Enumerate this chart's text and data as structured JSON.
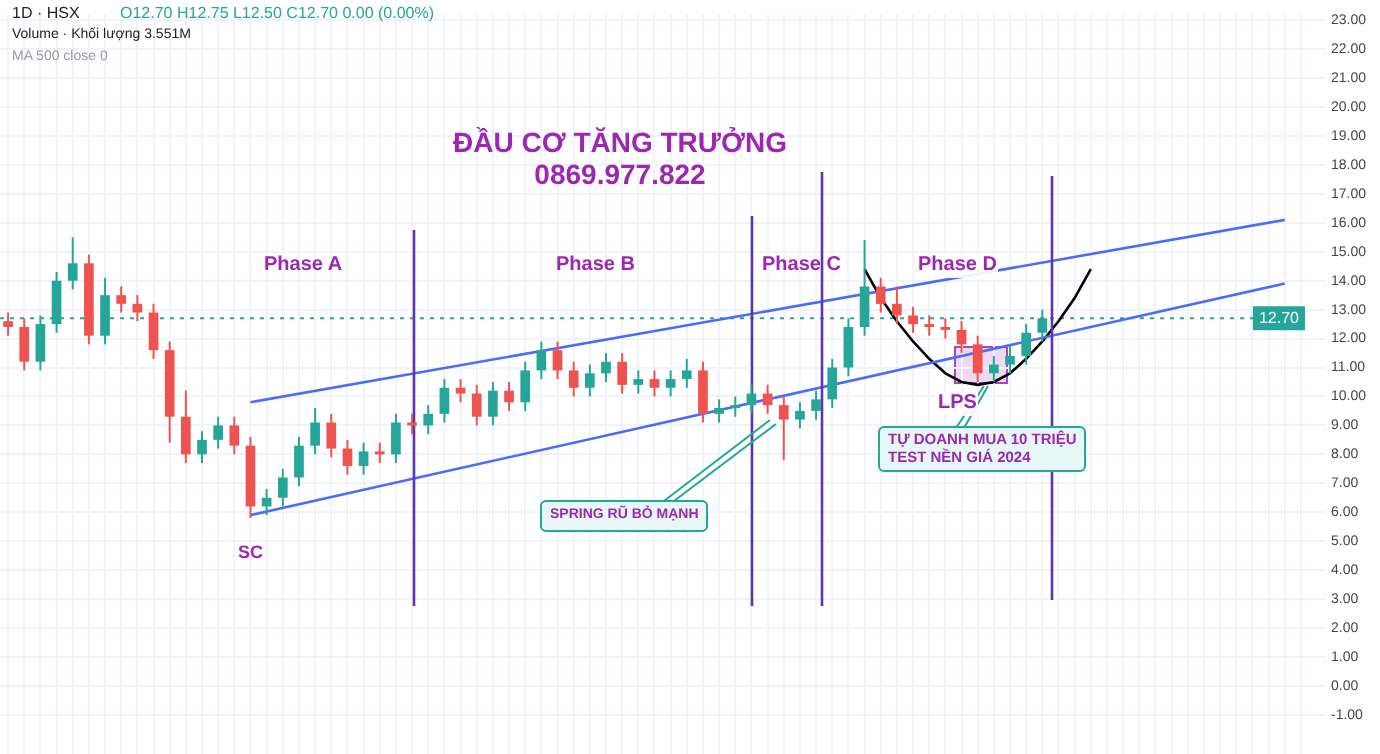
{
  "chart_data": {
    "type": "candlestick",
    "title": "ĐẦU CƠ TĂNG TRƯỞNG",
    "subtitle": "0869.977.822",
    "categories": [
      null,
      null,
      null,
      null,
      null,
      null,
      null,
      null,
      null,
      null,
      null,
      null,
      null,
      null,
      null,
      null,
      null,
      null,
      null,
      null,
      null,
      null,
      null,
      null,
      null,
      null,
      null,
      null,
      null,
      null,
      null,
      null,
      null,
      null,
      null,
      null,
      null,
      null,
      null,
      null,
      null,
      null,
      null,
      null,
      null,
      null,
      null,
      null,
      null,
      null,
      null,
      null,
      null,
      null,
      null,
      null,
      null,
      null,
      null,
      null,
      null,
      null,
      null,
      null,
      null,
      null,
      null,
      null,
      null,
      null,
      null,
      null,
      null,
      null,
      null,
      null,
      null,
      null,
      null,
      null,
      null
    ],
    "ohlc": [
      [
        12.6,
        12.9,
        12.1,
        12.4
      ],
      [
        12.4,
        12.7,
        10.9,
        11.2
      ],
      [
        11.2,
        12.8,
        10.9,
        12.5
      ],
      [
        12.5,
        14.3,
        12.2,
        14.0
      ],
      [
        14.0,
        15.5,
        13.7,
        14.6
      ],
      [
        14.6,
        14.9,
        11.8,
        12.1
      ],
      [
        12.1,
        14.1,
        11.8,
        13.5
      ],
      [
        13.5,
        13.8,
        12.9,
        13.2
      ],
      [
        13.2,
        13.5,
        12.6,
        12.9
      ],
      [
        12.9,
        13.2,
        11.3,
        11.6
      ],
      [
        11.6,
        11.9,
        8.4,
        9.3
      ],
      [
        9.3,
        10.2,
        7.7,
        8.0
      ],
      [
        8.0,
        8.8,
        7.7,
        8.5
      ],
      [
        8.5,
        9.3,
        8.2,
        9.0
      ],
      [
        9.0,
        9.3,
        8.0,
        8.3
      ],
      [
        8.3,
        8.6,
        5.8,
        6.2
      ],
      [
        6.2,
        6.8,
        5.9,
        6.5
      ],
      [
        6.5,
        7.5,
        6.2,
        7.2
      ],
      [
        7.2,
        8.6,
        6.9,
        8.3
      ],
      [
        8.3,
        9.6,
        8.0,
        9.1
      ],
      [
        9.1,
        9.4,
        7.9,
        8.2
      ],
      [
        8.2,
        8.5,
        7.3,
        7.6
      ],
      [
        7.6,
        8.4,
        7.3,
        8.1
      ],
      [
        8.1,
        8.4,
        7.7,
        8.0
      ],
      [
        8.0,
        9.4,
        7.7,
        9.1
      ],
      [
        9.1,
        9.4,
        8.7,
        9.0
      ],
      [
        9.0,
        9.7,
        8.7,
        9.4
      ],
      [
        9.4,
        10.6,
        9.1,
        10.3
      ],
      [
        10.3,
        10.6,
        9.8,
        10.1
      ],
      [
        10.1,
        10.4,
        9.0,
        9.3
      ],
      [
        9.3,
        10.5,
        9.0,
        10.2
      ],
      [
        10.2,
        10.5,
        9.5,
        9.8
      ],
      [
        9.8,
        11.2,
        9.5,
        10.9
      ],
      [
        10.9,
        11.9,
        10.6,
        11.6
      ],
      [
        11.6,
        11.9,
        10.6,
        10.9
      ],
      [
        10.9,
        11.2,
        10.0,
        10.3
      ],
      [
        10.3,
        11.1,
        10.0,
        10.8
      ],
      [
        10.8,
        11.5,
        10.5,
        11.2
      ],
      [
        11.2,
        11.5,
        10.1,
        10.4
      ],
      [
        10.4,
        10.9,
        10.1,
        10.6
      ],
      [
        10.6,
        10.9,
        10.0,
        10.3
      ],
      [
        10.3,
        10.9,
        10.0,
        10.6
      ],
      [
        10.6,
        11.3,
        10.3,
        10.9
      ],
      [
        10.9,
        11.2,
        9.1,
        9.4
      ],
      [
        9.4,
        9.9,
        9.1,
        9.6
      ],
      [
        9.6,
        10.0,
        9.3,
        9.7
      ],
      [
        9.7,
        10.4,
        9.4,
        10.1
      ],
      [
        10.1,
        10.4,
        9.4,
        9.7
      ],
      [
        9.7,
        10.0,
        7.8,
        9.2
      ],
      [
        9.2,
        9.8,
        8.9,
        9.5
      ],
      [
        9.5,
        10.2,
        9.2,
        9.9
      ],
      [
        9.9,
        11.3,
        9.6,
        11.0
      ],
      [
        11.0,
        12.7,
        10.7,
        12.4
      ],
      [
        12.4,
        15.4,
        12.1,
        13.8
      ],
      [
        13.8,
        14.1,
        12.9,
        13.2
      ],
      [
        13.2,
        13.8,
        12.5,
        12.8
      ],
      [
        12.8,
        13.1,
        12.2,
        12.5
      ],
      [
        12.5,
        12.8,
        12.1,
        12.4
      ],
      [
        12.4,
        12.7,
        12.0,
        12.3
      ],
      [
        12.3,
        12.6,
        11.5,
        11.8
      ],
      [
        11.8,
        12.1,
        10.5,
        10.8
      ],
      [
        10.8,
        11.4,
        10.5,
        11.1
      ],
      [
        11.1,
        11.8,
        10.8,
        11.4
      ],
      [
        11.4,
        12.5,
        11.1,
        12.2
      ],
      [
        12.2,
        13.0,
        11.9,
        12.7
      ],
      null,
      null,
      null,
      null,
      null,
      null,
      null,
      null,
      null,
      null,
      null,
      null,
      null,
      null,
      null,
      null
    ],
    "colors": [
      "#ef5350",
      "#ef5350",
      "#26a69a",
      "#26a69a",
      "#26a69a",
      "#ef5350",
      "#26a69a",
      "#ef5350",
      "#ef5350",
      "#ef5350",
      "#ef5350",
      "#ef5350",
      "#26a69a",
      "#26a69a",
      "#ef5350",
      "#ef5350",
      "#26a69a",
      "#26a69a",
      "#26a69a",
      "#26a69a",
      "#ef5350",
      "#ef5350",
      "#26a69a",
      "#ef5350",
      "#26a69a",
      "#ef5350",
      "#26a69a",
      "#26a69a",
      "#ef5350",
      "#ef5350",
      "#26a69a",
      "#ef5350",
      "#26a69a",
      "#26a69a",
      "#ef5350",
      "#ef5350",
      "#26a69a",
      "#26a69a",
      "#ef5350",
      "#26a69a",
      "#ef5350",
      "#26a69a",
      "#26a69a",
      "#ef5350",
      "#26a69a",
      "#26a69a",
      "#26a69a",
      "#ef5350",
      "#ef5350",
      "#26a69a",
      "#26a69a",
      "#26a69a",
      "#26a69a",
      "#26a69a",
      "#ef5350",
      "#ef5350",
      "#ef5350",
      "#ef5350",
      "#ef5350",
      "#ef5350",
      "#ef5350",
      "#26a69a",
      "#26a69a",
      "#26a69a",
      "#26a69a",
      null,
      null,
      null,
      null,
      null,
      null,
      null,
      null,
      null,
      null,
      null,
      null,
      null,
      null,
      null,
      null
    ],
    "series": [
      {
        "type": "line",
        "color": "#4a6cf7",
        "values": [
          null,
          null,
          null,
          null,
          null,
          null,
          null,
          null,
          null,
          null,
          null,
          null,
          null,
          null,
          null,
          9.8,
          null,
          null,
          null,
          null,
          null,
          null,
          null,
          null,
          null,
          null,
          null,
          null,
          null,
          null,
          null,
          null,
          null,
          null,
          null,
          null,
          null,
          null,
          null,
          null,
          null,
          null,
          null,
          null,
          null,
          null,
          null,
          null,
          null,
          null,
          null,
          null,
          null,
          null,
          null,
          null,
          null,
          null,
          null,
          null,
          null,
          null,
          null,
          null,
          null,
          null,
          null,
          null,
          null,
          null,
          null,
          null,
          null,
          null,
          null,
          null,
          null,
          null,
          null,
          16.1,
          null
        ]
      },
      {
        "type": "line",
        "color": "#4a6cf7",
        "values": [
          null,
          null,
          null,
          null,
          null,
          null,
          null,
          null,
          null,
          null,
          null,
          null,
          null,
          null,
          null,
          5.9,
          null,
          null,
          null,
          null,
          null,
          null,
          null,
          null,
          null,
          null,
          null,
          null,
          null,
          null,
          null,
          null,
          null,
          null,
          null,
          null,
          null,
          null,
          null,
          null,
          null,
          null,
          null,
          null,
          null,
          null,
          null,
          null,
          null,
          null,
          null,
          null,
          null,
          null,
          null,
          null,
          null,
          null,
          null,
          null,
          null,
          null,
          null,
          null,
          null,
          null,
          null,
          null,
          null,
          null,
          null,
          null,
          null,
          null,
          null,
          null,
          null,
          null,
          null,
          13.9,
          null
        ]
      },
      {
        "type": "line",
        "color": "#000000",
        "values": [
          null,
          null,
          null,
          null,
          null,
          null,
          null,
          null,
          null,
          null,
          null,
          null,
          null,
          null,
          null,
          null,
          null,
          null,
          null,
          null,
          null,
          null,
          null,
          null,
          null,
          null,
          null,
          null,
          null,
          null,
          null,
          null,
          null,
          null,
          null,
          null,
          null,
          null,
          null,
          null,
          null,
          null,
          null,
          null,
          null,
          null,
          null,
          null,
          null,
          null,
          null,
          null,
          null,
          14.4,
          13.4,
          12.6,
          11.9,
          11.3,
          10.8,
          10.5,
          10.4,
          10.5,
          10.8,
          11.3,
          11.9,
          12.6,
          13.4,
          14.4,
          null,
          null,
          null,
          null,
          null,
          null,
          null,
          null,
          null,
          null,
          null,
          null,
          null
        ]
      }
    ],
    "ylim": [
      -1.8,
      23.2
    ],
    "yticks": [
      {
        "value": -1,
        "label": "-1.00"
      },
      {
        "value": 0,
        "label": "0.00"
      },
      {
        "value": 1,
        "label": "1.00"
      },
      {
        "value": 2,
        "label": "2.00"
      },
      {
        "value": 3,
        "label": "3.00"
      },
      {
        "value": 4,
        "label": "4.00"
      },
      {
        "value": 5,
        "label": "5.00"
      },
      {
        "value": 6,
        "label": "6.00"
      },
      {
        "value": 7,
        "label": "7.00"
      },
      {
        "value": 8,
        "label": "8.00"
      },
      {
        "value": 9,
        "label": "9.00"
      },
      {
        "value": 10,
        "label": "10.00"
      },
      {
        "value": 11,
        "label": "11.00"
      },
      {
        "value": 12,
        "label": "12.00"
      },
      {
        "value": 13,
        "label": "13.00"
      },
      {
        "value": 14,
        "label": "14.00"
      },
      {
        "value": 15,
        "label": "15.00"
      },
      {
        "value": 16,
        "label": "16.00"
      },
      {
        "value": 17,
        "label": "17.00"
      },
      {
        "value": 18,
        "label": "18.00"
      },
      {
        "value": 19,
        "label": "19.00"
      },
      {
        "value": 20,
        "label": "20.00"
      },
      {
        "value": 21,
        "label": "21.00"
      },
      {
        "value": 22,
        "label": "22.00"
      },
      {
        "value": 23,
        "label": "23.00"
      }
    ],
    "ref_lines": [
      {
        "axis": "y",
        "value": 12.7,
        "label": "12.70",
        "color": "#26a69a",
        "line_style": "dotted"
      }
    ],
    "annotations": [
      "1D · HSX",
      "O12.70 H12.75 L12.50 C12.70 0.00 (0.00%)",
      "Volume · Khối lượng 3.551M",
      "MA 500 close 0",
      "Phase A",
      "Phase B",
      "Phase C",
      "Phase D",
      "SC",
      "LPS",
      "SPRING RŨ BỎ MẠNH",
      "TỰ DOANH MUA 10 TRIỆU\nTEST NỀN GIÁ 2024"
    ],
    "grid": true,
    "legend": false,
    "tick_labels": "y",
    "marker": "none"
  }
}
